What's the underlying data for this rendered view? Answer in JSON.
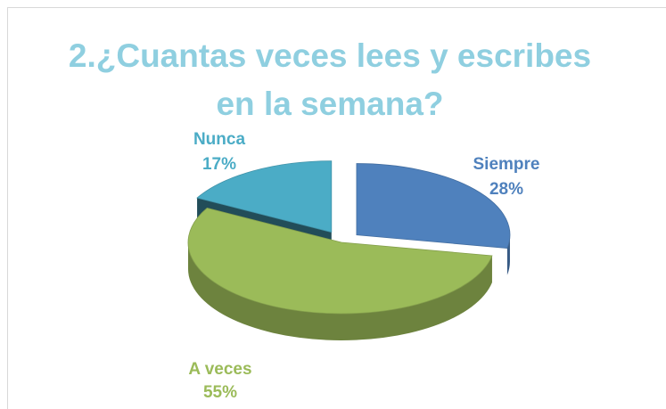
{
  "chart_data": {
    "type": "pie",
    "title": "2.¿Cuantas veces lees y escribes en la semana?",
    "categories": [
      "Siempre",
      "A veces",
      "Nunca"
    ],
    "values": [
      28,
      55,
      17
    ],
    "value_labels": [
      "28%",
      "55%",
      "17%"
    ],
    "colors": [
      "#4f81bd",
      "#9bbb59",
      "#4bacc6"
    ]
  }
}
